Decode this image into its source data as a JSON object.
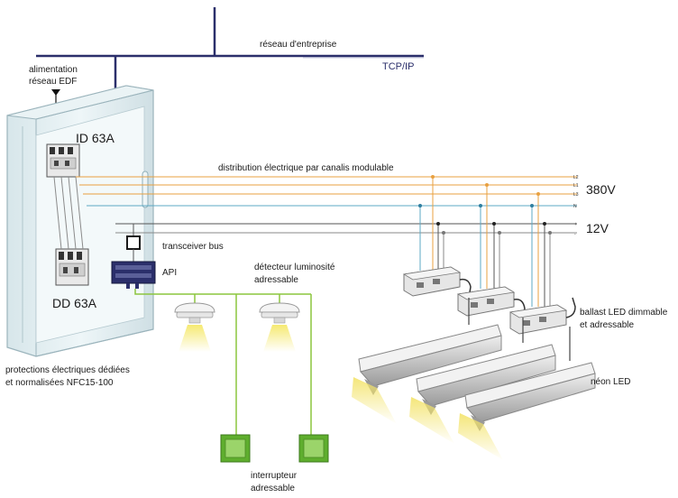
{
  "network": {
    "label": "réseau d'entreprise",
    "protocol": "TCP/IP",
    "color": "#2b2f6b"
  },
  "supply": {
    "line1": "alimentation",
    "line2": "réseau EDF"
  },
  "breakers": {
    "main": "ID 63A",
    "secondary": "DD 63A"
  },
  "distribution": {
    "label": "distribution électrique par canalis modulable",
    "phases": [
      "L2",
      "L1",
      "L3",
      "N"
    ],
    "voltage": "380V",
    "dc_terminals": [
      "+",
      "-"
    ],
    "dc_voltage": "12V"
  },
  "components": {
    "transceiver": "transceiver bus",
    "api": "API",
    "detector_line1": "détecteur luminosité",
    "detector_line2": "adressable",
    "ballast_line1": "ballast LED dimmable",
    "ballast_line2": "et adressable",
    "neon": "néon LED",
    "switch_line1": "interrupteur",
    "switch_line2": "adressable"
  },
  "protections": {
    "line1": "protections électriques dédiées",
    "line2": "et normalisées NFC15-100"
  },
  "colors": {
    "bus_green": "#8cc63f",
    "phase_orange": "#e8a040",
    "wire_grey": "#8a8a8a",
    "cabinet": "#e4eff2",
    "switch_green": "#5fae2e"
  }
}
